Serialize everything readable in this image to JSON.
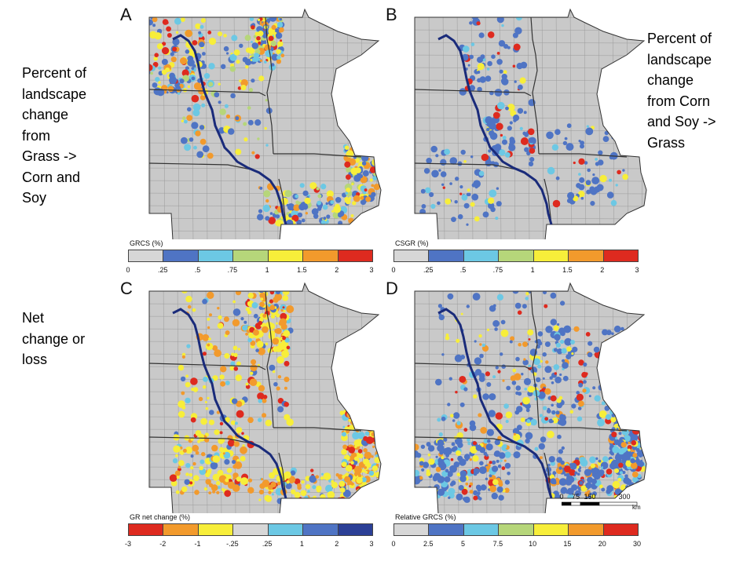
{
  "notes": {
    "a": "Percent of\nlandscape\nchange\nfrom\nGrass ->\nCorn and\nSoy",
    "b": "Percent of\nlandscape\nchange\nfrom Corn\nand Soy ->\nGrass",
    "c": "Net\nchange or\nloss"
  },
  "panels": [
    {
      "id": "a",
      "letter": "A",
      "legend_title": "GRCS (%)",
      "ticks": [
        "0",
        ".25",
        ".5",
        ".75",
        "1",
        "1.5",
        "2",
        "3"
      ],
      "colors": [
        "#d7d7d7",
        "#4f74c4",
        "#6cc8e4",
        "#b6d67a",
        "#f7ee3a",
        "#f29a2c",
        "#de2a1f"
      ]
    },
    {
      "id": "b",
      "letter": "B",
      "legend_title": "CSGR (%)",
      "ticks": [
        "0",
        ".25",
        ".5",
        ".75",
        "1",
        "1.5",
        "2",
        "3"
      ],
      "colors": [
        "#d7d7d7",
        "#4f74c4",
        "#6cc8e4",
        "#b6d67a",
        "#f7ee3a",
        "#f29a2c",
        "#de2a1f"
      ]
    },
    {
      "id": "c",
      "letter": "C",
      "legend_title": "GR net change (%)",
      "ticks": [
        "-3",
        "-2",
        "-1",
        "-.25",
        ".25",
        "1",
        "2",
        "3"
      ],
      "colors": [
        "#de2a1f",
        "#f29a2c",
        "#f7ee3a",
        "#d7d7d7",
        "#6cc8e4",
        "#4f74c4",
        "#2b3f96"
      ]
    },
    {
      "id": "d",
      "letter": "D",
      "legend_title": "Relative GRCS (%)",
      "ticks": [
        "0",
        "2.5",
        "5",
        "7.5",
        "10",
        "15",
        "20",
        "30"
      ],
      "colors": [
        "#d7d7d7",
        "#4f74c4",
        "#6cc8e4",
        "#b6d67a",
        "#f7ee3a",
        "#f29a2c",
        "#de2a1f"
      ]
    }
  ],
  "scalebar": {
    "labels": [
      "0",
      "75",
      "150",
      "300"
    ],
    "unit": "km"
  },
  "map_colors": {
    "land": "#c9c9c9",
    "county_lines": "#9a9a9a",
    "state_lines": "#333333",
    "river": "#1a2b7a"
  }
}
